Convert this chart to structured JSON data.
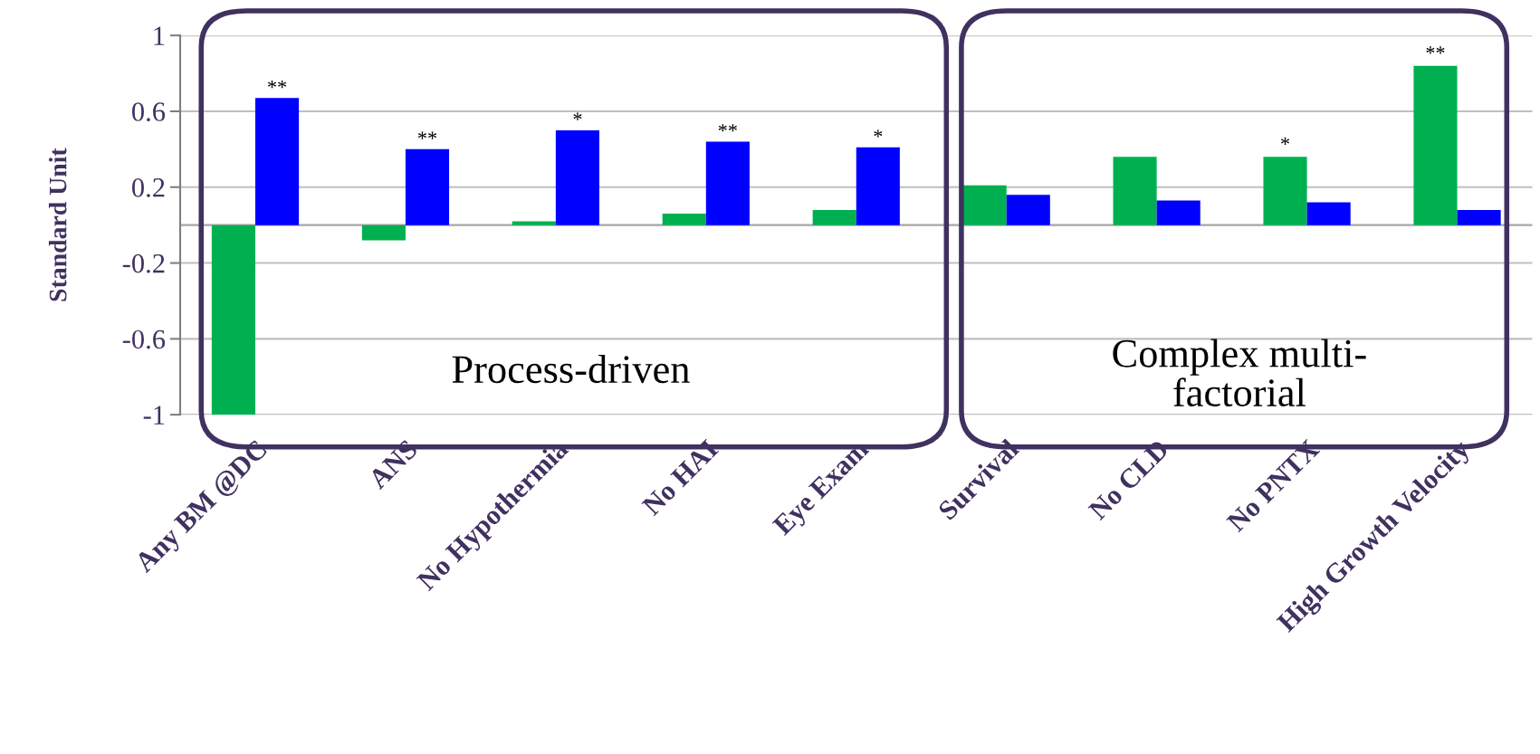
{
  "chart_data": {
    "type": "bar",
    "ylabel": "Standard Unit",
    "categories": [
      "Any BM @DC",
      "ANS",
      "No Hypothermia",
      "No HAI",
      "Eye Exam",
      "Survival",
      "No CLD",
      "No PNTX",
      "High Growth Velocity"
    ],
    "series": [
      {
        "color": "#00b050",
        "values": [
          -1.0,
          -0.08,
          0.02,
          0.06,
          0.08,
          0.21,
          0.36,
          0.36,
          0.84
        ]
      },
      {
        "color": "#0000ff",
        "values": [
          0.67,
          0.4,
          0.5,
          0.44,
          0.41,
          0.16,
          0.13,
          0.12,
          0.08
        ]
      }
    ],
    "ylim": [
      -1,
      1
    ],
    "yticks": [
      -1,
      -0.6,
      -0.2,
      0.2,
      0.6,
      1
    ],
    "grid": "y",
    "legend": false,
    "annotations": [
      {
        "text": "**",
        "x": "Any BM @DC",
        "y": 0.67
      },
      {
        "text": "**",
        "x": "ANS",
        "y": 0.4
      },
      {
        "text": "*",
        "x": "No Hypothermia",
        "y": 0.5
      },
      {
        "text": "**",
        "x": "No HAI",
        "y": 0.44
      },
      {
        "text": "*",
        "x": "Eye Exam",
        "y": 0.41
      },
      "*",
      "**",
      "Process-driven",
      "Complex multi-\nfactorial"
    ]
  }
}
